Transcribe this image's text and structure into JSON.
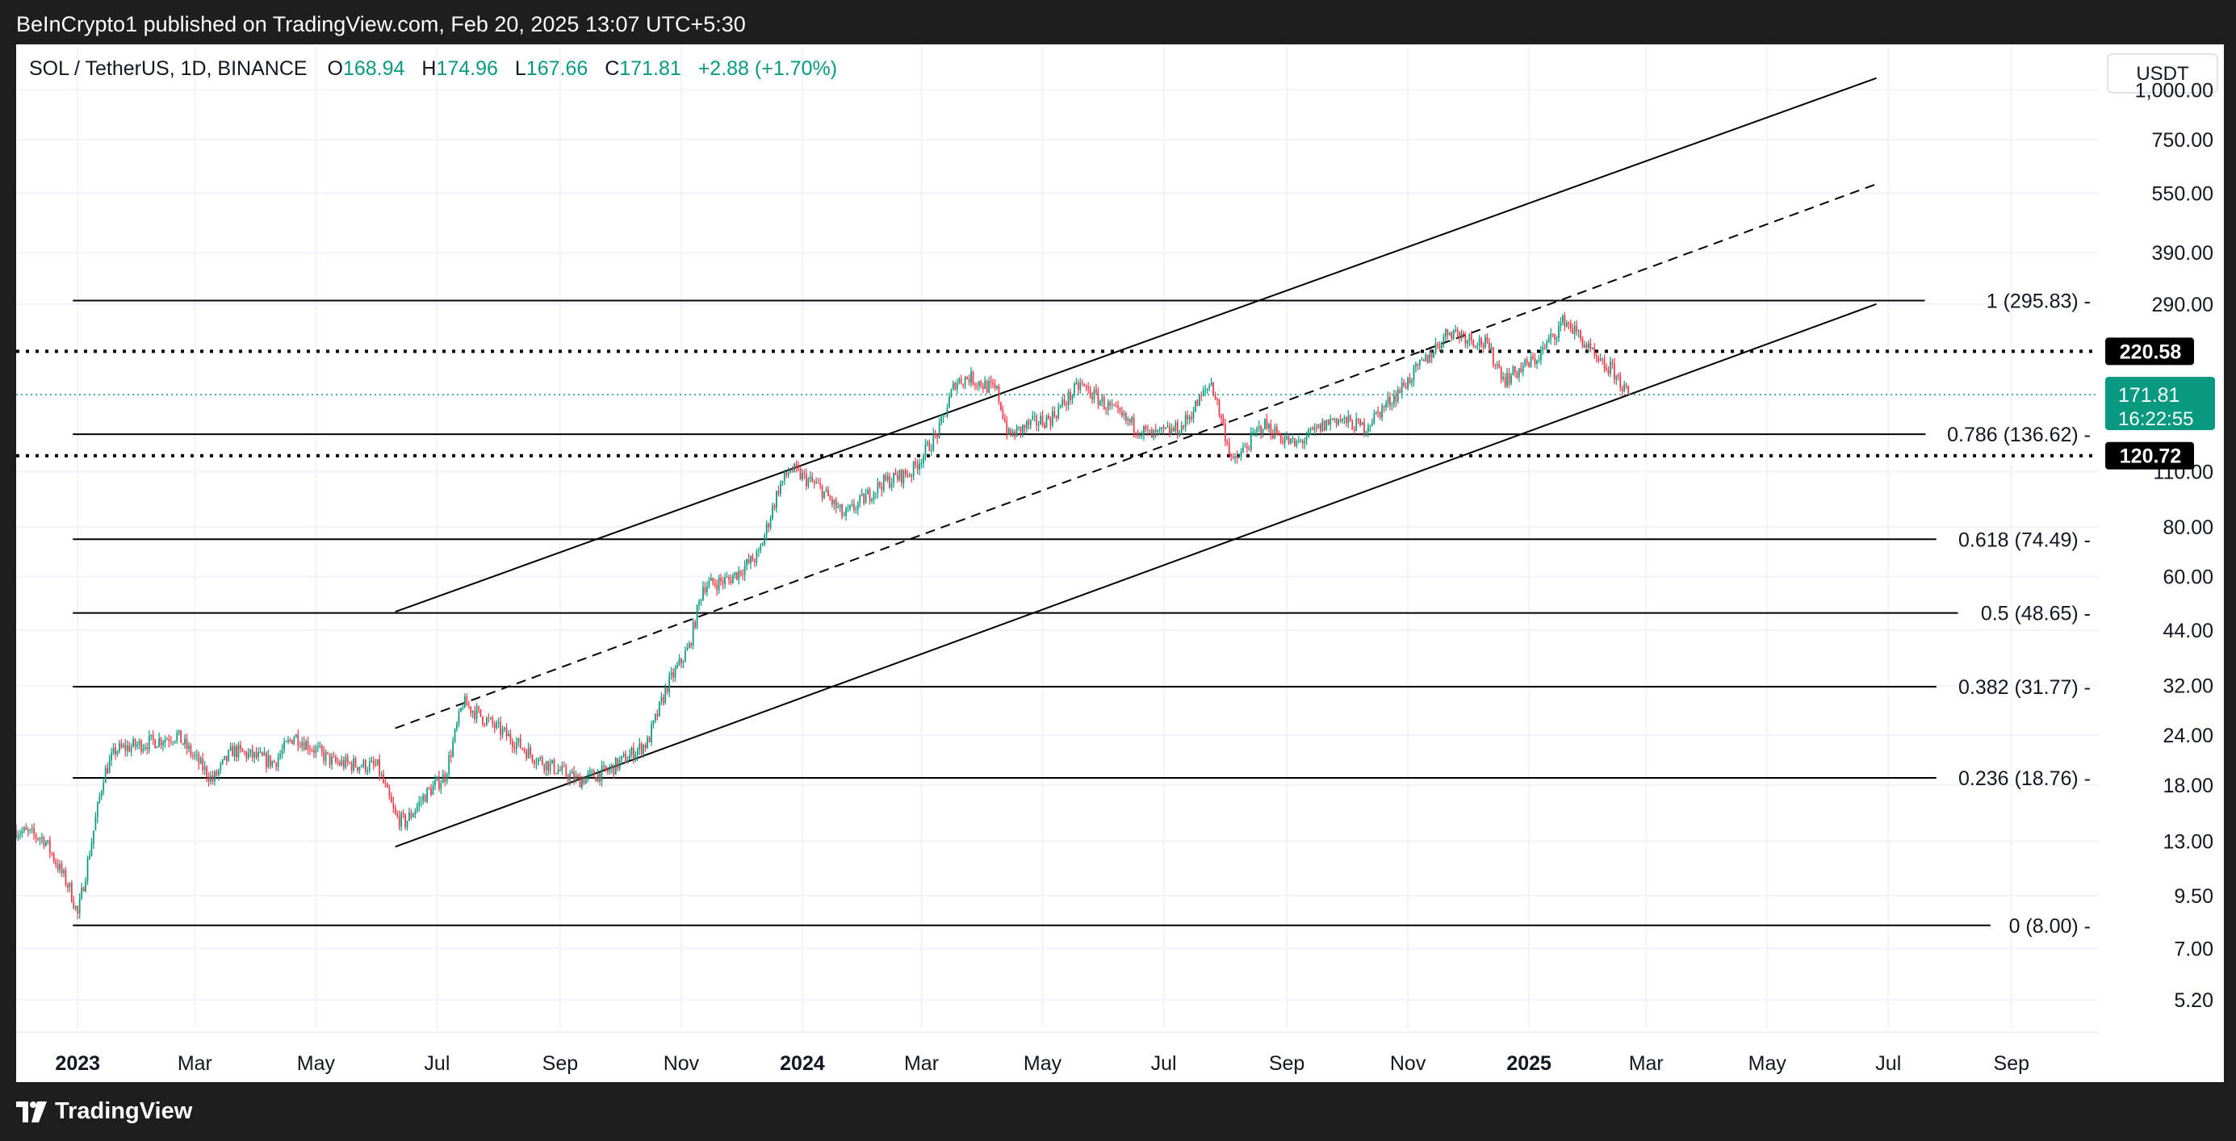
{
  "header": {
    "published": "BeInCrypto1 published on TradingView.com, Feb 20, 2025 13:07 UTC+5:30"
  },
  "footer": {
    "brand": "TradingView"
  },
  "legend": {
    "symbol": "SOL / TetherUS, 1D, BINANCE",
    "open_label": "O",
    "open": "168.94",
    "high_label": "H",
    "high": "174.96",
    "low_label": "L",
    "low": "167.66",
    "close_label": "C",
    "close": "171.81",
    "change": "+2.88 (+1.70%)"
  },
  "price_scale": {
    "currency": "USDT",
    "ticks": [
      "1,000.00",
      "750.00",
      "550.00",
      "390.00",
      "290.00",
      "110.00",
      "80.00",
      "60.00",
      "44.00",
      "32.00",
      "24.00",
      "18.00",
      "13.00",
      "9.50",
      "7.00",
      "5.20"
    ],
    "price_tag": "171.81",
    "countdown": "16:22:55",
    "level_tags": [
      "220.58",
      "120.72"
    ]
  },
  "time_axis": {
    "labels": [
      "2023",
      "Mar",
      "May",
      "Jul",
      "Sep",
      "Nov",
      "2024",
      "Mar",
      "May",
      "Jul",
      "Sep",
      "Nov",
      "2025",
      "Mar",
      "May",
      "Jul",
      "Sep"
    ],
    "bold": [
      "2023",
      "2024",
      "2025"
    ]
  },
  "colors": {
    "up": "#089981",
    "down": "#f23645",
    "line": "#000000",
    "background": "#ffffff",
    "frame": "#1e1e1e"
  },
  "chart_data": {
    "type": "candlestick",
    "symbol": "SOL / TetherUS",
    "interval": "1D",
    "exchange": "BINANCE",
    "y_scale": "log",
    "ylim": [
      4.4,
      1300
    ],
    "xlim": [
      "2022-12-01",
      "2025-10-15"
    ],
    "last_price": 171.81,
    "fibonacci": [
      {
        "level": "1",
        "price": 295.83,
        "label": "1 (295.83)"
      },
      {
        "level": "0.786",
        "price": 136.62,
        "label": "0.786 (136.62)"
      },
      {
        "level": "0.618",
        "price": 74.49,
        "label": "0.618 (74.49)"
      },
      {
        "level": "0.5",
        "price": 48.65,
        "label": "0.5 (48.65)"
      },
      {
        "level": "0.382",
        "price": 31.77,
        "label": "0.382 (31.77)"
      },
      {
        "level": "0.236",
        "price": 18.76,
        "label": "0.236 (18.76)"
      },
      {
        "level": "0",
        "price": 8.0,
        "label": "0 (8.00)"
      }
    ],
    "horizontal_levels": [
      220.58,
      120.72
    ],
    "channel": {
      "upper": [
        [
          "2023-06-10",
          49
        ],
        [
          "2025-06-25",
          1070
        ]
      ],
      "middle": [
        [
          "2023-06-10",
          25
        ],
        [
          "2025-06-25",
          580
        ]
      ],
      "lower": [
        [
          "2023-06-10",
          12.6
        ],
        [
          "2025-06-25",
          290
        ]
      ]
    },
    "price_path": [
      [
        "2022-12-01",
        13.9
      ],
      [
        "2022-12-15",
        13.2
      ],
      [
        "2022-12-28",
        9.9
      ],
      [
        "2023-01-01",
        8.5
      ],
      [
        "2023-01-08",
        13.0
      ],
      [
        "2023-01-14",
        19.0
      ],
      [
        "2023-01-20",
        22.0
      ],
      [
        "2023-02-05",
        23.0
      ],
      [
        "2023-02-20",
        24.0
      ],
      [
        "2023-03-10",
        18.5
      ],
      [
        "2023-03-20",
        22.0
      ],
      [
        "2023-04-10",
        20.5
      ],
      [
        "2023-04-20",
        24.0
      ],
      [
        "2023-05-10",
        20.5
      ],
      [
        "2023-06-01",
        20.0
      ],
      [
        "2023-06-10",
        15.0
      ],
      [
        "2023-06-15",
        14.5
      ],
      [
        "2023-06-25",
        17.0
      ],
      [
        "2023-07-05",
        19.0
      ],
      [
        "2023-07-14",
        29.0
      ],
      [
        "2023-08-05",
        24.0
      ],
      [
        "2023-08-20",
        21.0
      ],
      [
        "2023-09-10",
        18.5
      ],
      [
        "2023-09-25",
        19.5
      ],
      [
        "2023-10-15",
        23.0
      ],
      [
        "2023-10-25",
        32.0
      ],
      [
        "2023-11-05",
        40.0
      ],
      [
        "2023-11-12",
        57.0
      ],
      [
        "2023-11-25",
        59.0
      ],
      [
        "2023-12-10",
        68.0
      ],
      [
        "2023-12-20",
        100.0
      ],
      [
        "2023-12-26",
        112.0
      ],
      [
        "2024-01-10",
        100.0
      ],
      [
        "2024-01-22",
        85.0
      ],
      [
        "2024-02-10",
        103.0
      ],
      [
        "2024-02-25",
        110.0
      ],
      [
        "2024-03-10",
        140.0
      ],
      [
        "2024-03-18",
        185.0
      ],
      [
        "2024-03-25",
        190.0
      ],
      [
        "2024-04-08",
        175.0
      ],
      [
        "2024-04-14",
        135.0
      ],
      [
        "2024-04-25",
        145.0
      ],
      [
        "2024-05-05",
        150.0
      ],
      [
        "2024-05-20",
        182.0
      ],
      [
        "2024-06-10",
        150.0
      ],
      [
        "2024-06-25",
        135.0
      ],
      [
        "2024-07-10",
        142.0
      ],
      [
        "2024-07-25",
        185.0
      ],
      [
        "2024-08-05",
        115.0
      ],
      [
        "2024-08-20",
        145.0
      ],
      [
        "2024-09-05",
        128.0
      ],
      [
        "2024-09-25",
        150.0
      ],
      [
        "2024-10-10",
        142.0
      ],
      [
        "2024-10-25",
        170.0
      ],
      [
        "2024-11-10",
        210.0
      ],
      [
        "2024-11-22",
        250.0
      ],
      [
        "2024-12-10",
        230.0
      ],
      [
        "2024-12-20",
        188.0
      ],
      [
        "2025-01-05",
        212.0
      ],
      [
        "2025-01-19",
        265.0
      ],
      [
        "2025-01-28",
        235.0
      ],
      [
        "2025-02-05",
        205.0
      ],
      [
        "2025-02-12",
        198.0
      ],
      [
        "2025-02-20",
        171.81
      ]
    ]
  }
}
